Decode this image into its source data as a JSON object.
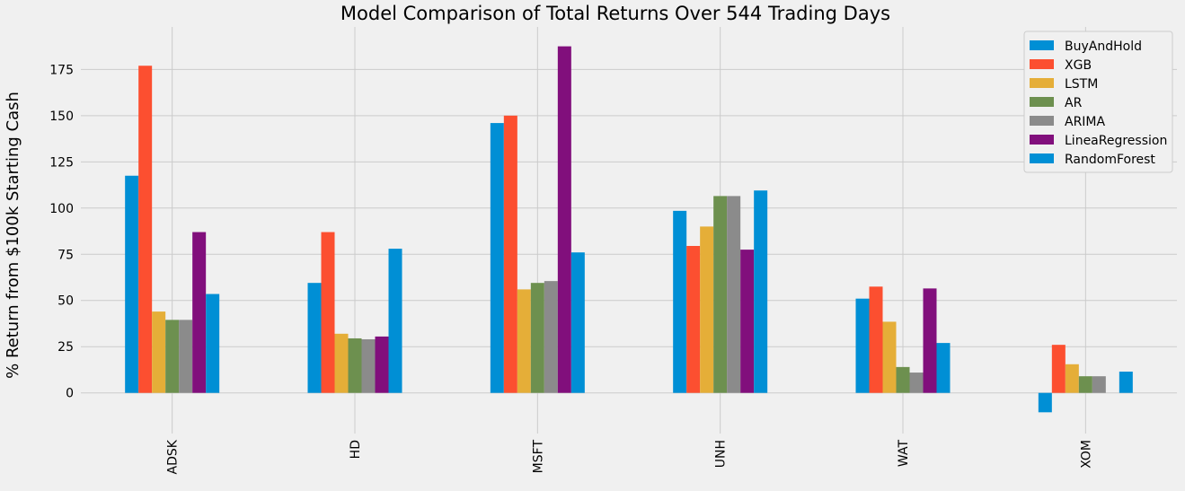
{
  "chart_data": {
    "type": "bar",
    "title": "Model Comparison of Total Returns Over 544 Trading Days",
    "xlabel": "",
    "ylabel": "% Return from $100k Starting Cash",
    "categories": [
      "ADSK",
      "HD",
      "MSFT",
      "UNH",
      "WAT",
      "XOM"
    ],
    "ylim": [
      -22,
      198
    ],
    "yticks": [
      0,
      25,
      50,
      75,
      100,
      125,
      150,
      175
    ],
    "grid": true,
    "legend_position": "top-right",
    "series": [
      {
        "name": "BuyAndHold",
        "color": "#008fd5",
        "values": [
          117.5,
          59.5,
          146,
          98.5,
          51,
          -10.5
        ]
      },
      {
        "name": "XGB",
        "color": "#fc4f30",
        "values": [
          177,
          87,
          150,
          79.5,
          57.5,
          26
        ]
      },
      {
        "name": "LSTM",
        "color": "#e5ae38",
        "values": [
          44,
          32,
          56,
          90,
          38.5,
          15.5
        ]
      },
      {
        "name": "AR",
        "color": "#6d904f",
        "values": [
          39.5,
          29.5,
          59.5,
          106.5,
          14,
          9
        ]
      },
      {
        "name": "ARIMA",
        "color": "#8b8b8b",
        "values": [
          39.5,
          29,
          60.5,
          106.5,
          11,
          9
        ]
      },
      {
        "name": "LineaRegression",
        "color": "#810f7c",
        "values": [
          87,
          30.5,
          187.5,
          77.5,
          56.5,
          0
        ]
      },
      {
        "name": "RandomForest",
        "color": "#008fd5",
        "values": [
          53.5,
          78,
          76,
          109.5,
          27,
          11.5
        ]
      }
    ]
  }
}
